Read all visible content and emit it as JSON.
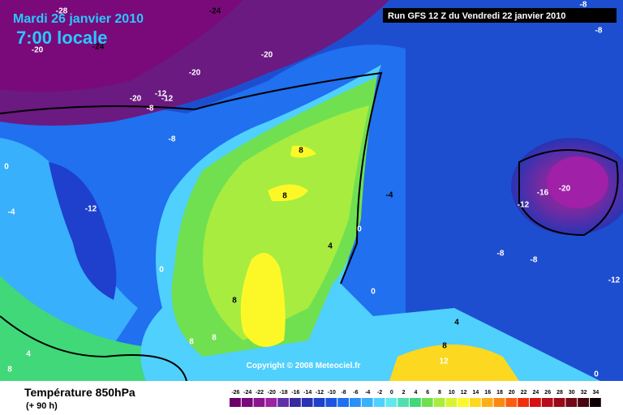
{
  "header": {
    "date": "Mardi 26 janvier 2010",
    "time": "7:00 locale",
    "run": "Run GFS 12 Z du Vendredi 22 janvier 2010"
  },
  "copyright": "Copyright © 2008 Meteociel.fr",
  "legend": {
    "title": "Température 850hPa",
    "subtitle": "(+ 90 h)",
    "scale": [
      {
        "value": -26,
        "color": "#6a0068"
      },
      {
        "value": -24,
        "color": "#7a0a7a"
      },
      {
        "value": -22,
        "color": "#8a168c"
      },
      {
        "value": -20,
        "color": "#9c22a0"
      },
      {
        "value": -18,
        "color": "#6030a8"
      },
      {
        "value": -16,
        "color": "#3a2c9c"
      },
      {
        "value": -14,
        "color": "#2834b4"
      },
      {
        "value": -12,
        "color": "#1e40cc"
      },
      {
        "value": -10,
        "color": "#1c54e0"
      },
      {
        "value": -8,
        "color": "#2070f0"
      },
      {
        "value": -6,
        "color": "#2890f8"
      },
      {
        "value": -4,
        "color": "#38b0fc"
      },
      {
        "value": -2,
        "color": "#50d0fc"
      },
      {
        "value": 0,
        "color": "#60e8f0"
      },
      {
        "value": 2,
        "color": "#50e0b0"
      },
      {
        "value": 4,
        "color": "#40d878"
      },
      {
        "value": 6,
        "color": "#70e050"
      },
      {
        "value": 8,
        "color": "#a8ec40"
      },
      {
        "value": 10,
        "color": "#d8f430"
      },
      {
        "value": 12,
        "color": "#fcf828"
      },
      {
        "value": 14,
        "color": "#fcd820"
      },
      {
        "value": 16,
        "color": "#fcb018"
      },
      {
        "value": 18,
        "color": "#fc8814"
      },
      {
        "value": 20,
        "color": "#fc5c10"
      },
      {
        "value": 22,
        "color": "#f0300c"
      },
      {
        "value": 24,
        "color": "#d81010"
      },
      {
        "value": 26,
        "color": "#b80c18"
      },
      {
        "value": 28,
        "color": "#980818"
      },
      {
        "value": 30,
        "color": "#700818"
      },
      {
        "value": 32,
        "color": "#480410"
      },
      {
        "value": 34,
        "color": "#100004"
      }
    ]
  },
  "contour_labels": [
    -28,
    -24,
    -8,
    -8,
    -20,
    -24,
    -20,
    -20,
    -20,
    -12,
    -12,
    -8,
    -8,
    0,
    -4,
    -12,
    8,
    8,
    -4,
    -16,
    -20,
    -12,
    0,
    4,
    -8,
    -8,
    -12,
    0,
    0,
    8,
    4,
    8,
    8,
    4,
    8,
    8,
    12,
    0
  ]
}
